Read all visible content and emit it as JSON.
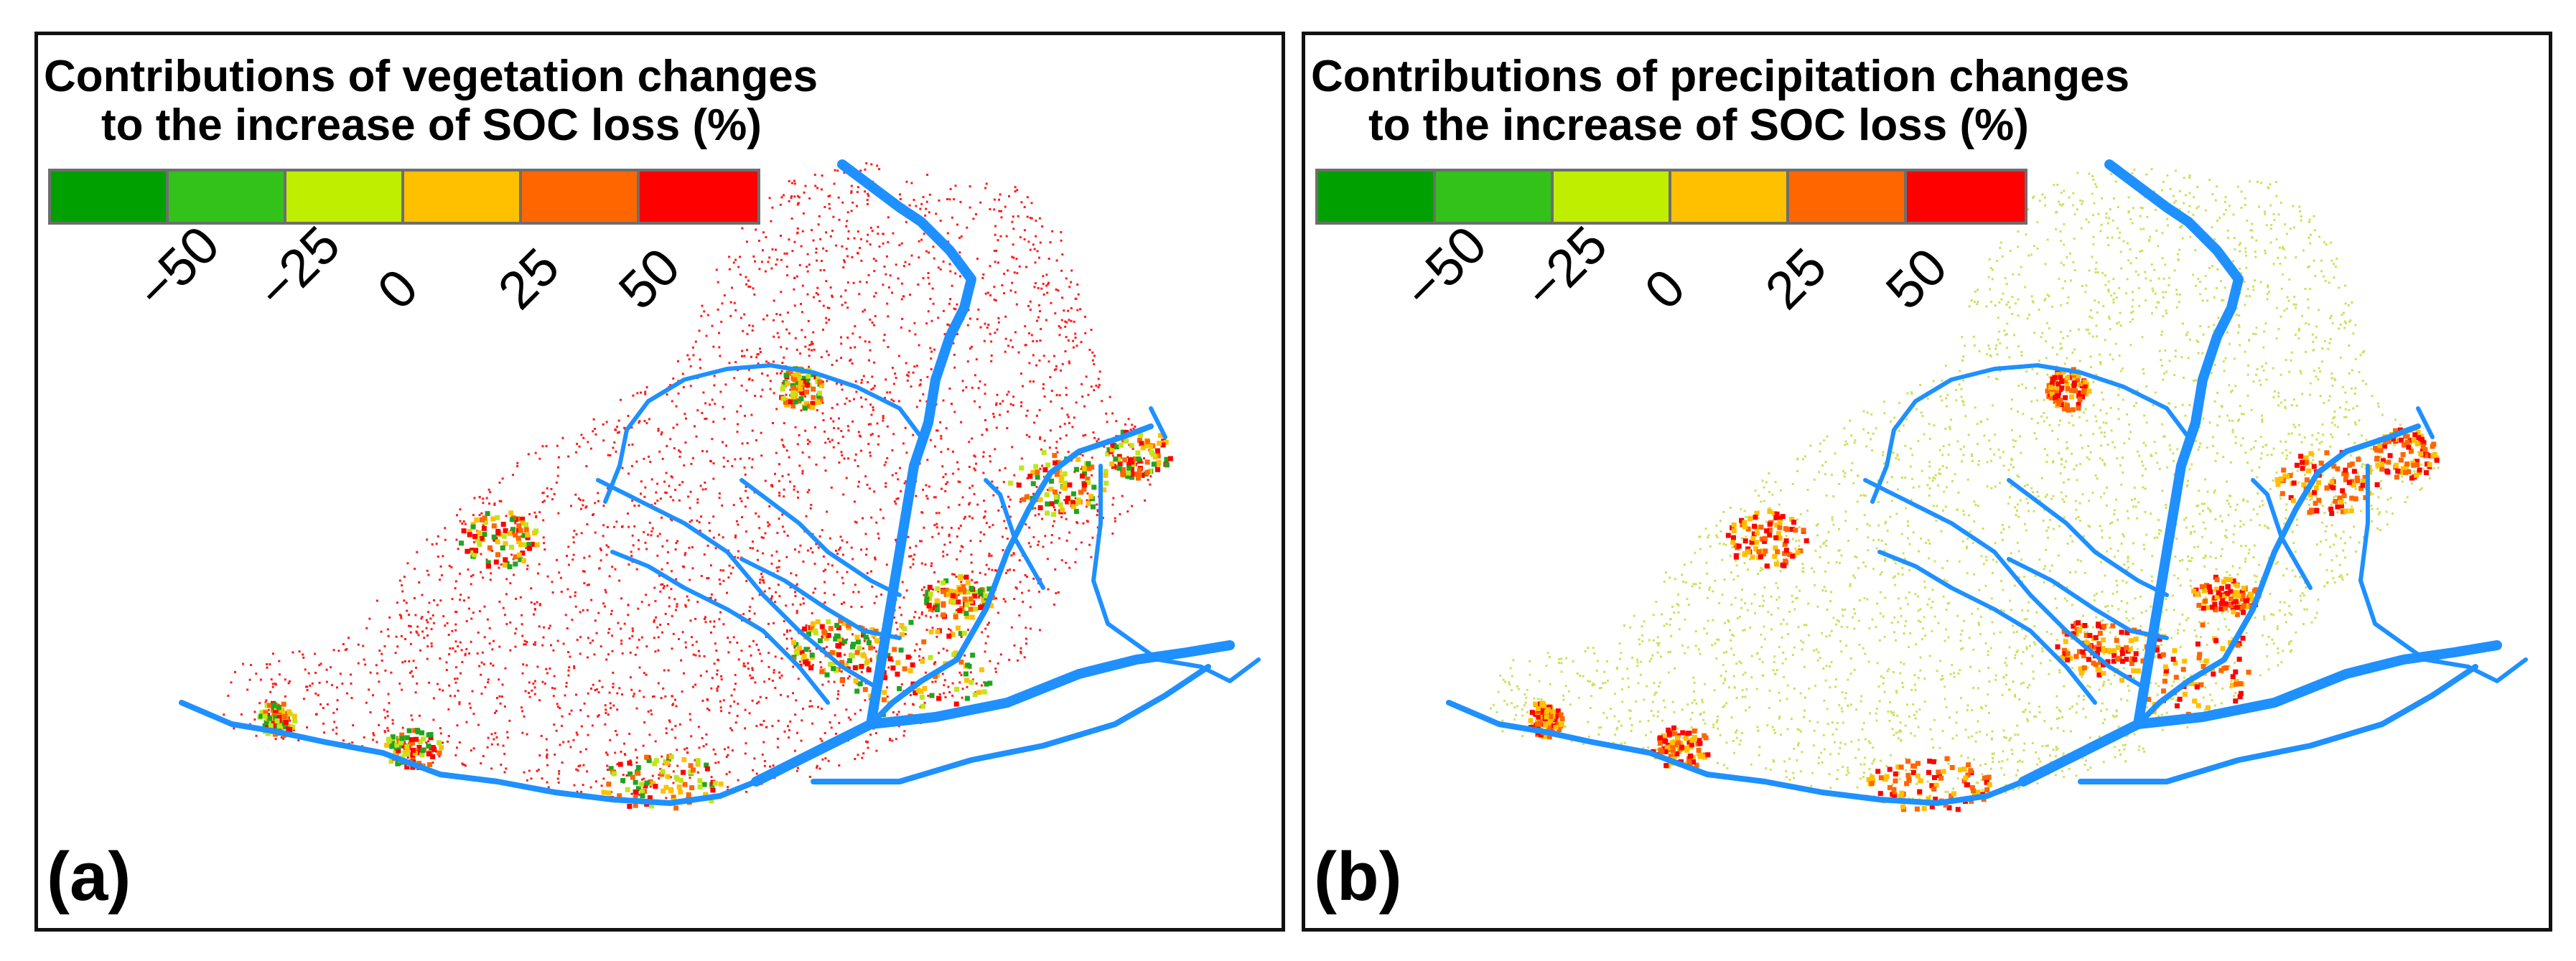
{
  "panels": [
    {
      "label": "(a)",
      "title_line1": "Contributions of vegetation changes",
      "title_line2": "to the increase of SOC loss (%)",
      "dominant_color": "#ff1a1a",
      "secondary_colors": [
        "#1fa51f",
        "#bfe61a",
        "#ffc000",
        "#ff6600",
        "#ff0000"
      ]
    },
    {
      "label": "(b)",
      "title_line1": "Contributions of precipitation changes",
      "title_line2": "to  the increase of SOC loss (%)",
      "dominant_color": "#cde05a",
      "secondary_colors": [
        "#ff0000",
        "#ff6600",
        "#ffc000"
      ]
    }
  ],
  "legend": {
    "colors": [
      "#00a000",
      "#33c21a",
      "#c0ee00",
      "#ffc000",
      "#ff6600",
      "#ff0000"
    ],
    "tick_labels": [
      "−50",
      "−25",
      "0",
      "25",
      "50"
    ]
  },
  "river_color": "#1e90ff"
}
